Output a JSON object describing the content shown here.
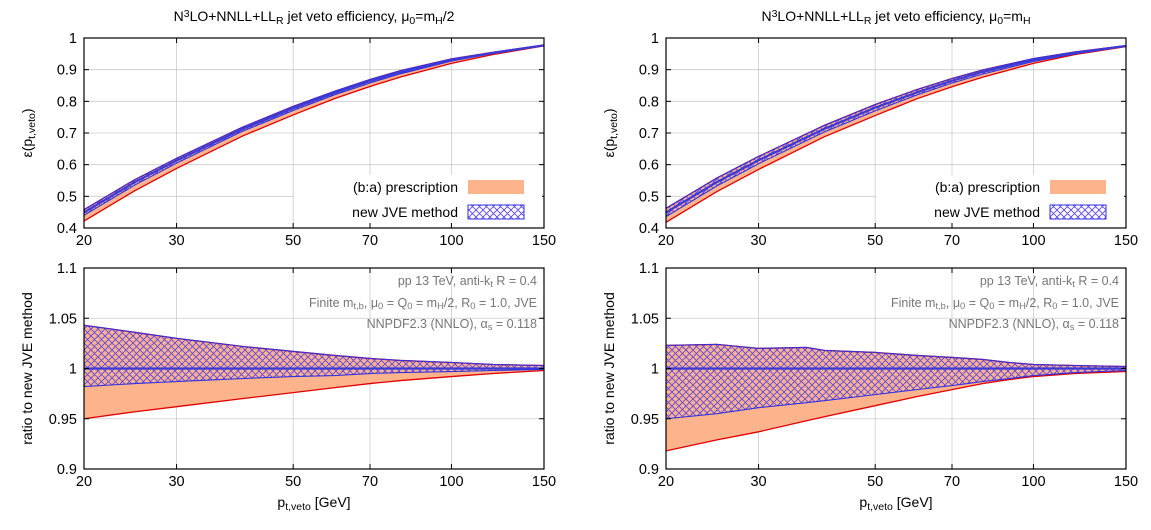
{
  "colors": {
    "prescription_band": "#fdb48c",
    "prescription_edge": "#e00000",
    "jve_hatch": "#5b46e8",
    "jve_edge": "#3232e0",
    "jve_central": "#3a3ad8",
    "annotation_text": "#777777",
    "grid": "#cccccc"
  },
  "legend": {
    "prescription": "(b:a) prescription",
    "jve": "new JVE method"
  },
  "annotations": [
    [
      "pp 13 TeV, anti-k",
      "t",
      " R = 0.4"
    ],
    [
      "Finite m",
      "t,b",
      ", μ",
      "0",
      " = Q",
      "0",
      " = m",
      "H",
      "/2, R",
      "0",
      " = 1.0, JVE"
    ],
    [
      "NNPDF2.3 (NNLO), α",
      "s",
      " = 0.118"
    ]
  ],
  "chart_data": [
    {
      "id": "top-left",
      "type": "area",
      "title": [
        "N",
        "3",
        "LO+NNLL+LL",
        "R",
        " jet veto efficiency, μ",
        "0",
        "=m",
        "H",
        "/2"
      ],
      "xlabel": [
        "p",
        "t,veto",
        " [GeV]"
      ],
      "ylabel": [
        "ε(p",
        "t,veto",
        ")"
      ],
      "xscale": "log",
      "xlim": [
        20,
        150
      ],
      "ylim": [
        0.4,
        1.0
      ],
      "xticks": [
        20,
        30,
        50,
        70,
        100,
        150
      ],
      "yticks": [
        0.4,
        0.5,
        0.6,
        0.7,
        0.8,
        0.9,
        1.0
      ],
      "grid": true,
      "legend_position": "bottom-right",
      "x": [
        20,
        25,
        30,
        40,
        50,
        60,
        70,
        80,
        100,
        120,
        150
      ],
      "series": [
        {
          "name": "(b:a) prescription",
          "kind": "band",
          "lower": [
            0.422,
            0.518,
            0.588,
            0.69,
            0.757,
            0.809,
            0.847,
            0.877,
            0.92,
            0.948,
            0.975
          ],
          "upper": [
            0.458,
            0.553,
            0.62,
            0.718,
            0.784,
            0.832,
            0.869,
            0.897,
            0.934,
            0.955,
            0.978
          ]
        },
        {
          "name": "new JVE method",
          "kind": "band",
          "lower": [
            0.44,
            0.536,
            0.605,
            0.705,
            0.771,
            0.821,
            0.858,
            0.887,
            0.927,
            0.951,
            0.976
          ],
          "upper": [
            0.458,
            0.553,
            0.62,
            0.718,
            0.784,
            0.832,
            0.869,
            0.897,
            0.934,
            0.955,
            0.978
          ],
          "central": [
            0.449,
            0.545,
            0.613,
            0.712,
            0.778,
            0.827,
            0.864,
            0.892,
            0.931,
            0.953,
            0.977
          ]
        }
      ]
    },
    {
      "id": "bottom-left",
      "type": "area",
      "xlabel": [
        "p",
        "t,veto",
        " [GeV]"
      ],
      "ylabel": [
        "ratio to new JVE method"
      ],
      "xscale": "log",
      "xlim": [
        20,
        150
      ],
      "ylim": [
        0.9,
        1.1
      ],
      "xticks": [
        20,
        30,
        50,
        70,
        100,
        150
      ],
      "yticks": [
        0.9,
        0.95,
        1.0,
        1.05,
        1.1
      ],
      "grid": true,
      "x": [
        20,
        25,
        30,
        40,
        50,
        60,
        70,
        80,
        100,
        120,
        150
      ],
      "series": [
        {
          "name": "(b:a) prescription",
          "kind": "band",
          "lower": [
            0.95,
            0.957,
            0.962,
            0.97,
            0.976,
            0.981,
            0.985,
            0.988,
            0.992,
            0.995,
            0.998
          ],
          "upper": [
            1.043,
            1.036,
            1.03,
            1.022,
            1.017,
            1.013,
            1.01,
            1.008,
            1.006,
            1.004,
            1.003
          ]
        },
        {
          "name": "new JVE method",
          "kind": "band",
          "lower": [
            0.982,
            0.985,
            0.987,
            0.99,
            0.992,
            0.993,
            0.995,
            0.996,
            0.997,
            0.998,
            0.999
          ],
          "upper": [
            1.043,
            1.036,
            1.03,
            1.022,
            1.017,
            1.013,
            1.01,
            1.008,
            1.006,
            1.004,
            1.003
          ],
          "central": [
            1.0,
            1.0,
            1.0,
            1.0,
            1.0,
            1.0,
            1.0,
            1.0,
            1.0,
            1.0,
            1.0
          ]
        }
      ]
    },
    {
      "id": "top-right",
      "type": "area",
      "title": [
        "N",
        "3",
        "LO+NNLL+LL",
        "R",
        " jet veto efficiency, μ",
        "0",
        "=m",
        "H"
      ],
      "xlabel": [
        "p",
        "t,veto",
        " [GeV]"
      ],
      "ylabel": [
        "ε(p",
        "t,veto",
        ")"
      ],
      "xscale": "log",
      "xlim": [
        20,
        150
      ],
      "ylim": [
        0.4,
        1.0
      ],
      "xticks": [
        20,
        30,
        50,
        70,
        100,
        150
      ],
      "yticks": [
        0.4,
        0.5,
        0.6,
        0.7,
        0.8,
        0.9,
        1.0
      ],
      "grid": true,
      "legend_position": "bottom-right",
      "x": [
        20,
        25,
        30,
        40,
        50,
        60,
        70,
        80,
        100,
        120,
        150
      ],
      "series": [
        {
          "name": "(b:a) prescription",
          "kind": "band",
          "lower": [
            0.418,
            0.515,
            0.585,
            0.688,
            0.755,
            0.808,
            0.846,
            0.876,
            0.92,
            0.948,
            0.973
          ],
          "upper": [
            0.462,
            0.558,
            0.626,
            0.724,
            0.79,
            0.837,
            0.872,
            0.899,
            0.935,
            0.956,
            0.976
          ]
        },
        {
          "name": "new JVE method",
          "kind": "band",
          "lower": [
            0.436,
            0.533,
            0.603,
            0.703,
            0.77,
            0.82,
            0.858,
            0.886,
            0.926,
            0.95,
            0.974
          ],
          "upper": [
            0.462,
            0.558,
            0.626,
            0.724,
            0.79,
            0.837,
            0.872,
            0.899,
            0.935,
            0.956,
            0.976
          ],
          "central": [
            0.449,
            0.545,
            0.614,
            0.713,
            0.78,
            0.828,
            0.865,
            0.893,
            0.931,
            0.953,
            0.975
          ]
        }
      ]
    },
    {
      "id": "bottom-right",
      "type": "area",
      "xlabel": [
        "p",
        "t,veto",
        " [GeV]"
      ],
      "ylabel": [
        "ratio to new JVE method"
      ],
      "xscale": "log",
      "xlim": [
        20,
        150
      ],
      "ylim": [
        0.9,
        1.1
      ],
      "xticks": [
        20,
        30,
        50,
        70,
        100,
        150
      ],
      "yticks": [
        0.9,
        0.95,
        1.0,
        1.05,
        1.1
      ],
      "grid": true,
      "x": [
        20,
        25,
        30,
        37,
        40,
        50,
        60,
        70,
        80,
        90,
        100,
        120,
        150
      ],
      "series": [
        {
          "name": "(b:a) prescription",
          "kind": "band",
          "lower": [
            0.918,
            0.929,
            0.937,
            0.948,
            0.952,
            0.963,
            0.972,
            0.979,
            0.985,
            0.989,
            0.992,
            0.995,
            0.997
          ],
          "upper": [
            1.023,
            1.024,
            1.02,
            1.021,
            1.018,
            1.016,
            1.013,
            1.011,
            1.009,
            1.006,
            1.004,
            1.003,
            1.002
          ]
        },
        {
          "name": "new JVE method",
          "kind": "band",
          "lower": [
            0.95,
            0.955,
            0.961,
            0.966,
            0.968,
            0.974,
            0.979,
            0.983,
            0.987,
            0.99,
            0.993,
            0.996,
            0.998
          ],
          "upper": [
            1.023,
            1.024,
            1.02,
            1.021,
            1.018,
            1.016,
            1.013,
            1.011,
            1.009,
            1.006,
            1.004,
            1.003,
            1.002
          ],
          "central": [
            1.0,
            1.0,
            1.0,
            1.0,
            1.0,
            1.0,
            1.0,
            1.0,
            1.0,
            1.0,
            1.0,
            1.0,
            1.0
          ]
        }
      ]
    }
  ]
}
